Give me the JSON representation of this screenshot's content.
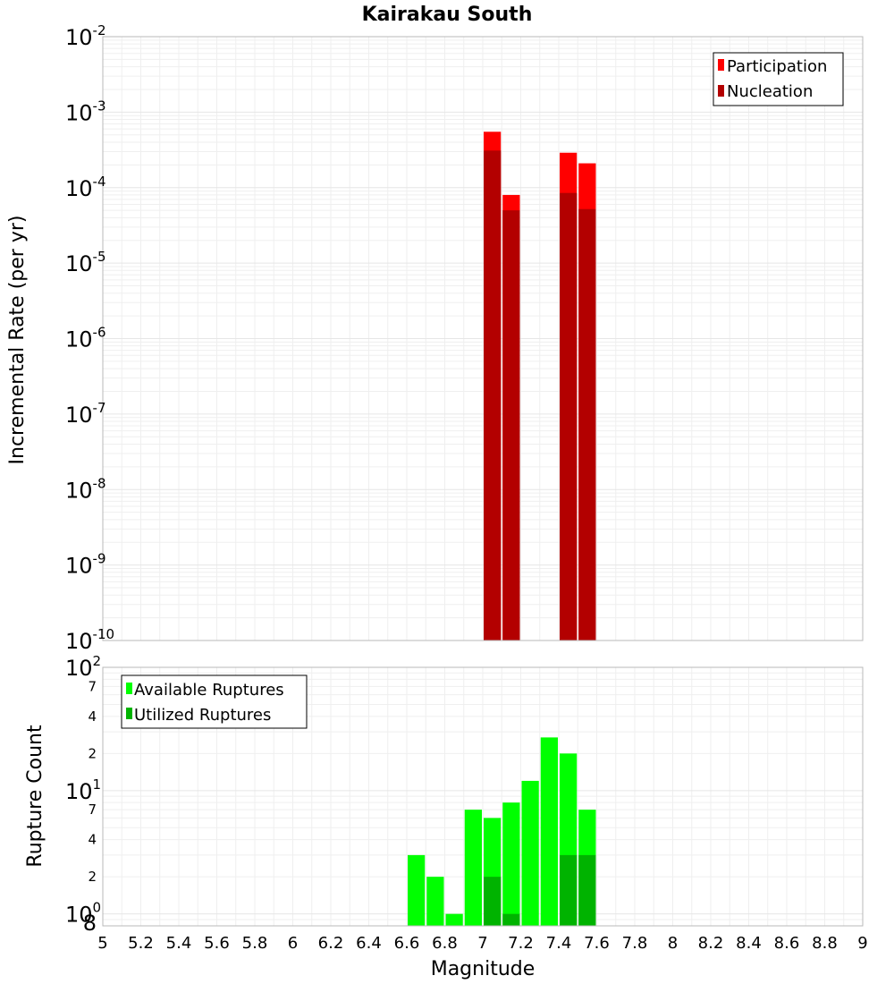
{
  "chart_data": [
    {
      "type": "bar",
      "title": "Kairakau South",
      "xlabel": "",
      "ylabel": "Incremental Rate (per yr)",
      "yscale": "log",
      "ylim": [
        1e-10,
        0.01
      ],
      "xlim": [
        5,
        9
      ],
      "bin_width": 0.1,
      "legend_position": "top-right",
      "series": [
        {
          "name": "Participation",
          "color": "#ff0000",
          "x": [
            7.05,
            7.15,
            7.45,
            7.55
          ],
          "values": [
            0.00055,
            8e-05,
            0.00029,
            0.00021
          ]
        },
        {
          "name": "Nucleation",
          "color": "#b30000",
          "x": [
            7.05,
            7.15,
            7.45,
            7.55
          ],
          "values": [
            0.00031,
            5e-05,
            8.5e-05,
            5.2e-05
          ]
        }
      ],
      "y_ticks": [
        {
          "base": "10",
          "exp": "-10"
        },
        {
          "base": "10",
          "exp": "-9"
        },
        {
          "base": "10",
          "exp": "-8"
        },
        {
          "base": "10",
          "exp": "-7"
        },
        {
          "base": "10",
          "exp": "-6"
        },
        {
          "base": "10",
          "exp": "-5"
        },
        {
          "base": "10",
          "exp": "-4"
        },
        {
          "base": "10",
          "exp": "-3"
        },
        {
          "base": "10",
          "exp": "-2"
        }
      ]
    },
    {
      "type": "bar",
      "title": "",
      "xlabel": "Magnitude",
      "ylabel": "Rupture Count",
      "yscale": "log",
      "ylim": [
        0.8,
        100
      ],
      "xlim": [
        5,
        9
      ],
      "bin_width": 0.1,
      "legend_position": "top-left",
      "series": [
        {
          "name": "Available Ruptures",
          "color": "#00ff00",
          "x": [
            6.65,
            6.75,
            6.85,
            6.95,
            7.05,
            7.15,
            7.25,
            7.35,
            7.45,
            7.55
          ],
          "values": [
            3,
            2,
            1,
            7,
            6,
            8,
            12,
            27,
            20,
            7
          ]
        },
        {
          "name": "Utilized Ruptures",
          "color": "#00b300",
          "x": [
            7.05,
            7.15,
            7.45,
            7.55
          ],
          "values": [
            2,
            1,
            3,
            3
          ]
        }
      ],
      "y_major_ticks": [
        {
          "value": 1,
          "base": "10",
          "exp": "0"
        },
        {
          "value": 10,
          "base": "10",
          "exp": "1"
        },
        {
          "value": 100,
          "base": "10",
          "exp": "2"
        }
      ],
      "y_minor_ticks": [
        {
          "value": 0.8,
          "label": "8"
        },
        {
          "value": 2,
          "label": "2"
        },
        {
          "value": 4,
          "label": "4"
        },
        {
          "value": 7,
          "label": "7"
        },
        {
          "value": 20,
          "label": "2"
        },
        {
          "value": 40,
          "label": "4"
        },
        {
          "value": 70,
          "label": "7"
        }
      ],
      "x_ticks": [
        "5",
        "5.2",
        "5.4",
        "5.6",
        "5.8",
        "6",
        "6.2",
        "6.4",
        "6.6",
        "6.8",
        "7",
        "7.2",
        "7.4",
        "7.6",
        "7.8",
        "8",
        "8.2",
        "8.4",
        "8.6",
        "8.8",
        "9"
      ]
    }
  ]
}
